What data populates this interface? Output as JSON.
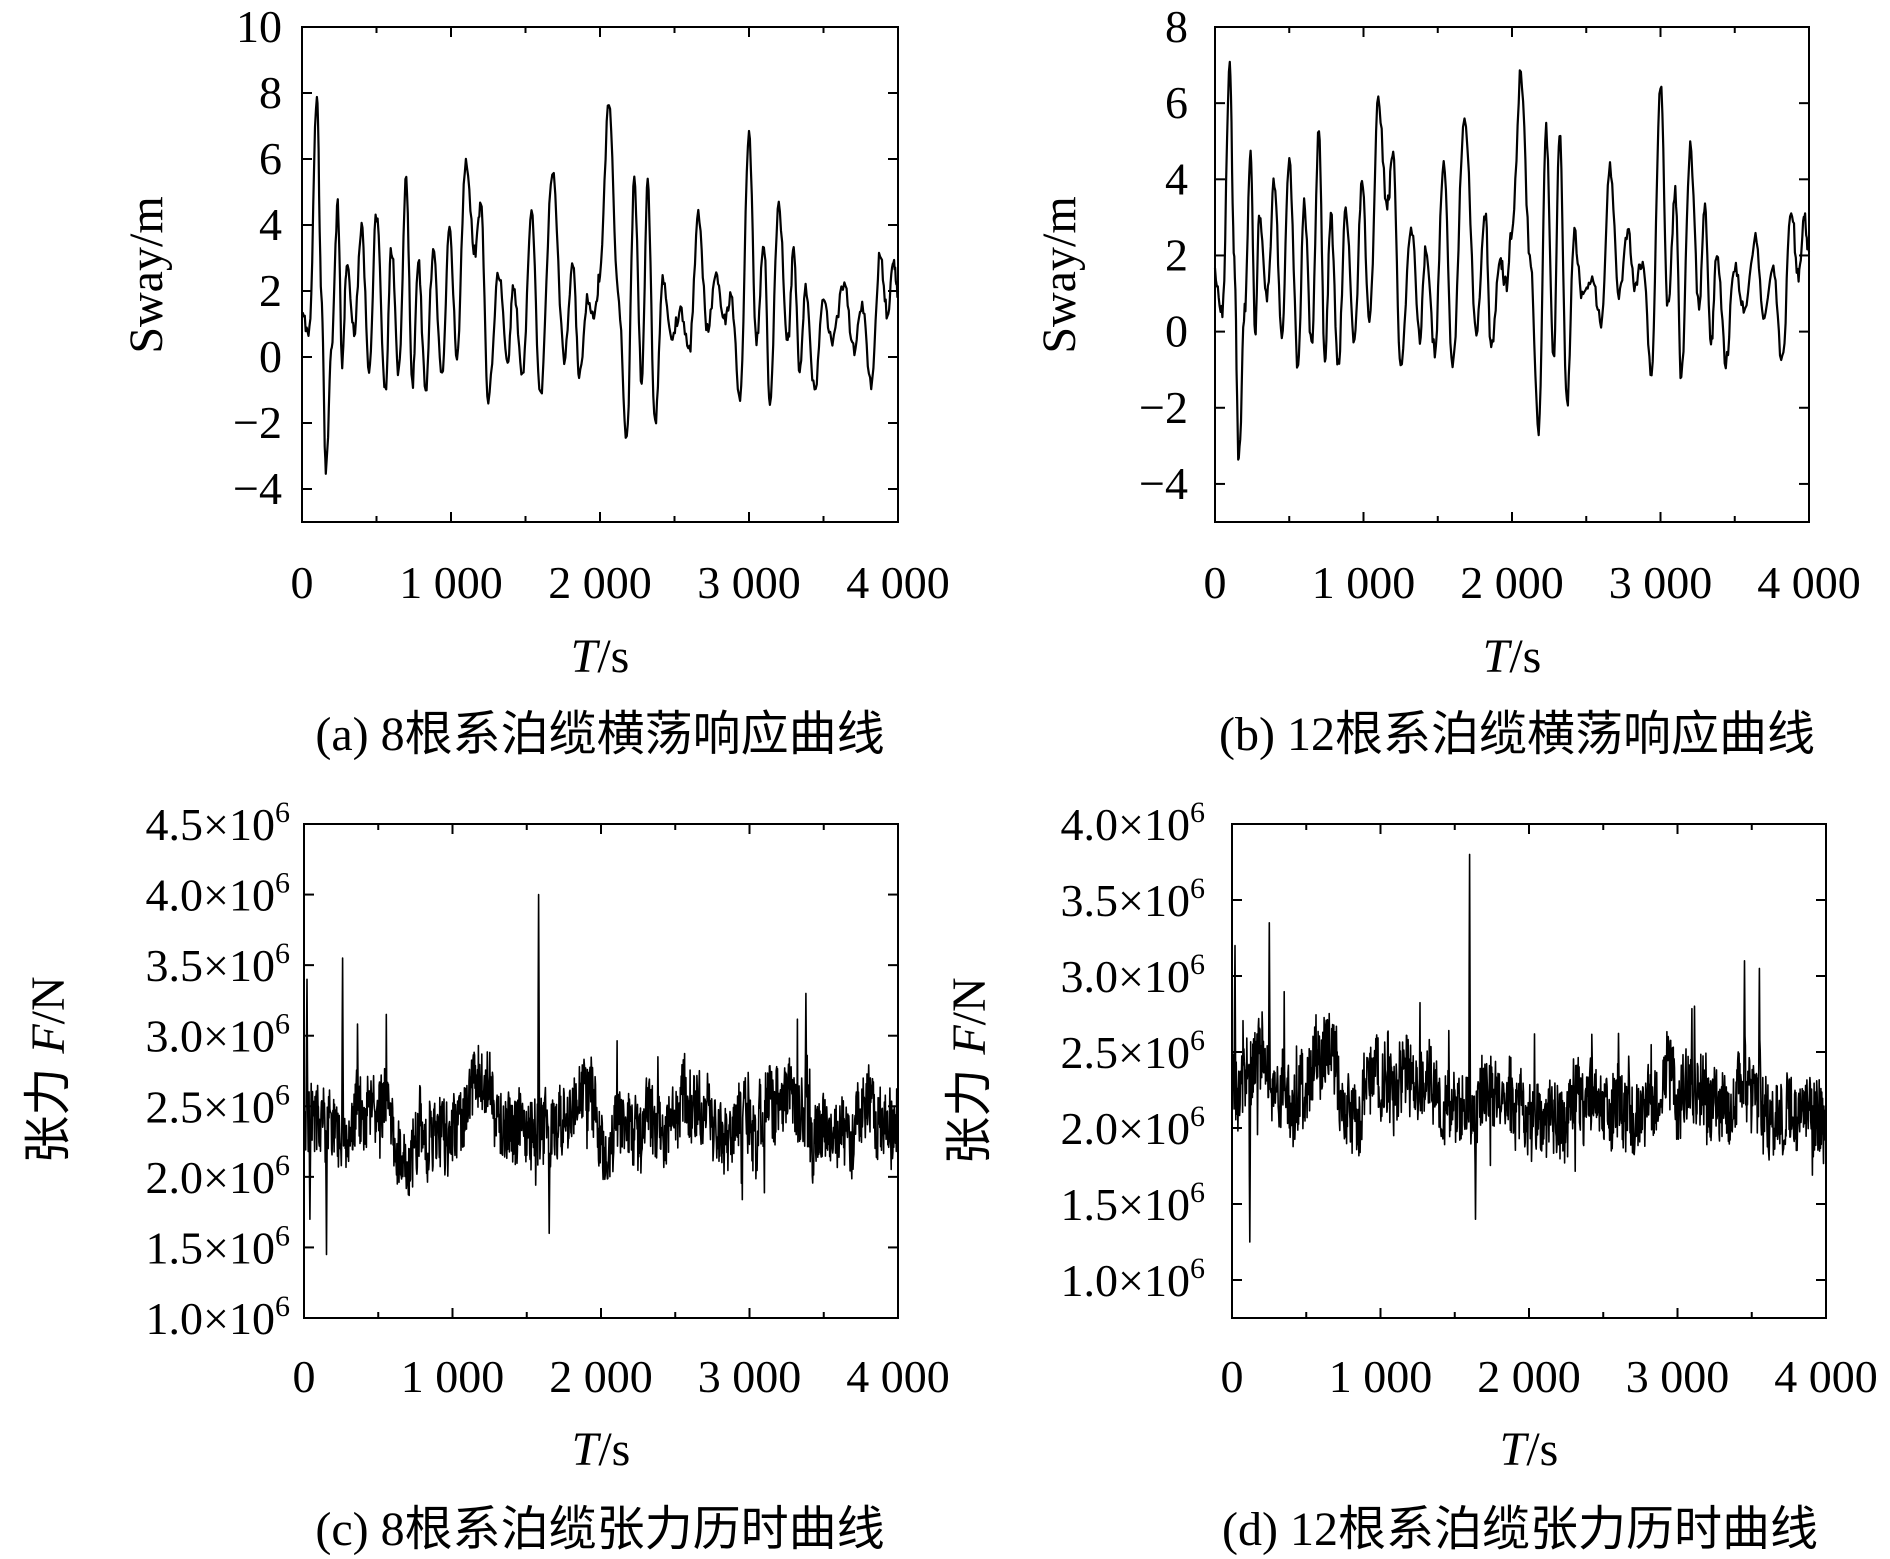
{
  "chart_data": [
    {
      "type": "line",
      "panel": "a",
      "caption": "(a) 8根系泊缆横荡响应曲线",
      "xlabel_italic": "T",
      "xlabel_rest": "/s",
      "ylabel": "Sway/m",
      "xlim": [
        0,
        4000
      ],
      "ylim": [
        -5,
        10
      ],
      "x_ticks": [
        0,
        1000,
        2000,
        3000,
        4000
      ],
      "x_tick_labels": [
        "0",
        "1 000",
        "2 000",
        "3 000",
        "4 000"
      ],
      "y_ticks": [
        -4,
        -2,
        0,
        2,
        4,
        6,
        8,
        10
      ],
      "y_tick_labels": [
        "−4",
        "−2",
        "0",
        "2",
        "4",
        "6",
        "8",
        "10"
      ],
      "series": [
        {
          "x": [
            0,
            50,
            100,
            130,
            160,
            200,
            240,
            270,
            300,
            350,
            400,
            450,
            500,
            560,
            600,
            650,
            700,
            740,
            780,
            830,
            880,
            940,
            990,
            1040,
            1100,
            1160,
            1200,
            1250,
            1320,
            1380,
            1420,
            1480,
            1540,
            1600,
            1680,
            1760,
            1820,
            1860,
            1920,
            1960,
            2000,
            2060,
            2120,
            2180,
            2230,
            2280,
            2320,
            2370,
            2420,
            2480,
            2540,
            2600,
            2660,
            2720,
            2780,
            2830,
            2880,
            2940,
            3000,
            3050,
            3100,
            3140,
            3200,
            3260,
            3300,
            3340,
            3380,
            3440,
            3500,
            3560,
            3640,
            3700,
            3760,
            3820,
            3880,
            3930,
            3970,
            4000
          ],
          "y": [
            1.2,
            0.8,
            8.0,
            2.0,
            -3.5,
            0.5,
            4.6,
            -0.2,
            2.8,
            0.8,
            3.9,
            -0.3,
            4.3,
            -1.1,
            3.3,
            -0.5,
            5.4,
            -0.9,
            2.9,
            -1.0,
            3.1,
            -0.4,
            3.8,
            0.1,
            6.0,
            3.2,
            4.6,
            -1.2,
            2.6,
            -0.2,
            2.2,
            -0.6,
            4.4,
            -1.2,
            5.6,
            0.0,
            2.9,
            -0.6,
            1.8,
            1.1,
            2.5,
            7.8,
            2.0,
            -2.4,
            5.3,
            -0.8,
            5.2,
            -2.1,
            2.3,
            0.6,
            1.4,
            0.2,
            4.3,
            0.9,
            2.5,
            1.1,
            1.8,
            -1.4,
            6.7,
            0.5,
            3.5,
            -1.3,
            4.6,
            0.4,
            3.2,
            -0.5,
            2.0,
            -1.0,
            1.6,
            0.5,
            2.3,
            0.2,
            1.5,
            -0.9,
            3.1,
            1.3,
            2.9,
            2.0
          ]
        }
      ]
    },
    {
      "type": "line",
      "panel": "b",
      "caption": "(b) 12根系泊缆横荡响应曲线",
      "xlabel_italic": "T",
      "xlabel_rest": "/s",
      "ylabel": "Sway/m",
      "xlim": [
        0,
        4000
      ],
      "ylim": [
        -5,
        8
      ],
      "x_ticks": [
        0,
        1000,
        2000,
        3000,
        4000
      ],
      "x_tick_labels": [
        "0",
        "1 000",
        "2 000",
        "3 000",
        "4 000"
      ],
      "y_ticks": [
        -4,
        -2,
        0,
        2,
        4,
        6,
        8
      ],
      "y_tick_labels": [
        "−4",
        "−2",
        "0",
        "2",
        "4",
        "6",
        "8"
      ],
      "series": [
        {
          "x": [
            0,
            50,
            100,
            130,
            160,
            200,
            240,
            270,
            300,
            350,
            400,
            450,
            500,
            560,
            600,
            650,
            700,
            740,
            780,
            830,
            880,
            940,
            990,
            1040,
            1100,
            1160,
            1200,
            1250,
            1320,
            1380,
            1420,
            1480,
            1540,
            1600,
            1680,
            1760,
            1820,
            1860,
            1920,
            1960,
            2000,
            2060,
            2120,
            2180,
            2230,
            2280,
            2320,
            2370,
            2420,
            2480,
            2540,
            2600,
            2660,
            2720,
            2780,
            2830,
            2880,
            2940,
            3000,
            3050,
            3100,
            3140,
            3200,
            3260,
            3300,
            3340,
            3380,
            3440,
            3500,
            3560,
            3640,
            3700,
            3760,
            3820,
            3880,
            3930,
            3970,
            4000
          ],
          "y": [
            1.5,
            0.6,
            6.9,
            1.8,
            -3.4,
            0.6,
            4.7,
            0.0,
            3.1,
            0.9,
            4.0,
            -0.1,
            4.4,
            -1.0,
            3.4,
            -0.4,
            5.3,
            -0.8,
            3.0,
            -0.9,
            3.2,
            -0.3,
            3.9,
            0.2,
            6.0,
            3.3,
            4.7,
            -1.1,
            2.8,
            -0.1,
            2.3,
            -0.5,
            4.5,
            -1.0,
            5.7,
            0.1,
            3.1,
            -0.5,
            1.9,
            1.2,
            2.6,
            6.8,
            2.1,
            -2.5,
            5.3,
            -0.7,
            5.2,
            -1.9,
            2.5,
            0.8,
            1.5,
            0.3,
            4.4,
            1.0,
            2.6,
            1.2,
            1.9,
            -1.2,
            6.6,
            0.6,
            3.6,
            -1.2,
            4.8,
            0.6,
            3.3,
            -0.4,
            2.1,
            -0.8,
            1.8,
            0.6,
            2.4,
            0.3,
            1.7,
            -0.8,
            3.2,
            1.4,
            3.0,
            2.1
          ]
        }
      ]
    },
    {
      "type": "line",
      "panel": "c",
      "caption": "(c) 8根系泊缆张力历时曲线",
      "xlabel_italic": "T",
      "xlabel_rest": "/s",
      "ylabel_cn": "张力",
      "ylabel_italic": "F",
      "ylabel_rest": "/N",
      "xlim": [
        0,
        4000
      ],
      "ylim": [
        1000000,
        4500000
      ],
      "x_ticks": [
        0,
        1000,
        2000,
        3000,
        4000
      ],
      "x_tick_labels": [
        "0",
        "1 000",
        "2 000",
        "3 000",
        "4 000"
      ],
      "y_ticks": [
        1000000,
        1500000,
        2000000,
        2500000,
        3000000,
        3500000,
        4000000,
        4500000
      ],
      "y_tick_mantissas": [
        "1.0",
        "1.5",
        "2.0",
        "2.5",
        "3.0",
        "3.5",
        "4.0",
        "4.5"
      ],
      "y_tick_times": "×10",
      "y_tick_exponent": "6",
      "series": [
        {
          "mean": 2400000,
          "amplitude": 300000,
          "spikes": [
            {
              "x": 20,
              "y": 3400000
            },
            {
              "x": 40,
              "y": 1700000
            },
            {
              "x": 150,
              "y": 1450000
            },
            {
              "x": 260,
              "y": 3550000
            },
            {
              "x": 1580,
              "y": 4000000
            },
            {
              "x": 1650,
              "y": 1600000
            },
            {
              "x": 3380,
              "y": 3300000
            }
          ]
        }
      ]
    },
    {
      "type": "line",
      "panel": "d",
      "caption": "(d) 12根系泊缆张力历时曲线",
      "xlabel_italic": "T",
      "xlabel_rest": "/s",
      "ylabel_cn": "张力",
      "ylabel_italic": "F",
      "ylabel_rest": "/N",
      "xlim": [
        0,
        4000
      ],
      "ylim": [
        750000,
        4000000
      ],
      "x_ticks": [
        0,
        1000,
        2000,
        3000,
        4000
      ],
      "x_tick_labels": [
        "0",
        "1 000",
        "2 000",
        "3 000",
        "4 000"
      ],
      "y_ticks": [
        1000000,
        1500000,
        2000000,
        2500000,
        3000000,
        3500000,
        4000000
      ],
      "y_tick_mantissas": [
        "1.0",
        "1.5",
        "2.0",
        "2.5",
        "3.0",
        "3.5",
        "4.0"
      ],
      "y_tick_times": "×10",
      "y_tick_exponent": "6",
      "series": [
        {
          "mean": 2200000,
          "amplitude": 300000,
          "spikes": [
            {
              "x": 20,
              "y": 3200000
            },
            {
              "x": 120,
              "y": 1250000
            },
            {
              "x": 250,
              "y": 3350000
            },
            {
              "x": 1600,
              "y": 3800000
            },
            {
              "x": 1640,
              "y": 1400000
            },
            {
              "x": 3450,
              "y": 3100000
            },
            {
              "x": 3550,
              "y": 3050000
            }
          ]
        }
      ]
    }
  ]
}
